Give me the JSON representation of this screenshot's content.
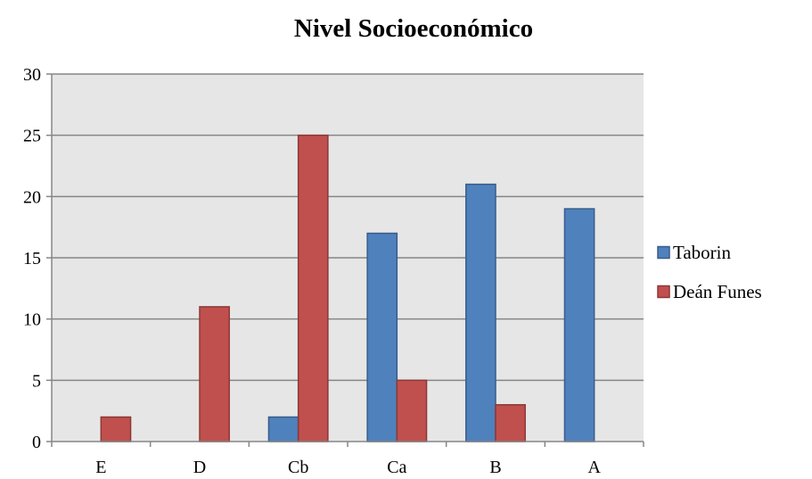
{
  "chart_data": {
    "type": "bar",
    "title": "Nivel Socioeconómico",
    "xlabel": "",
    "ylabel": "",
    "categories": [
      "E",
      "D",
      "Cb",
      "Ca",
      "B",
      "A"
    ],
    "series": [
      {
        "name": "Taborin",
        "values": [
          0,
          0,
          2,
          17,
          21,
          19
        ],
        "color": "#4F81BD",
        "edge": "#385D8A"
      },
      {
        "name": "Deán Funes",
        "values": [
          2,
          11,
          25,
          5,
          3,
          0
        ],
        "color": "#C0504D",
        "edge": "#8C3836"
      }
    ],
    "ylim": [
      0,
      30
    ],
    "yticks": [
      0,
      5,
      10,
      15,
      20,
      25,
      30
    ],
    "grid": true,
    "legend_position": "right",
    "plot_background": "#E6E6E6",
    "gridline_color": "#868686"
  }
}
